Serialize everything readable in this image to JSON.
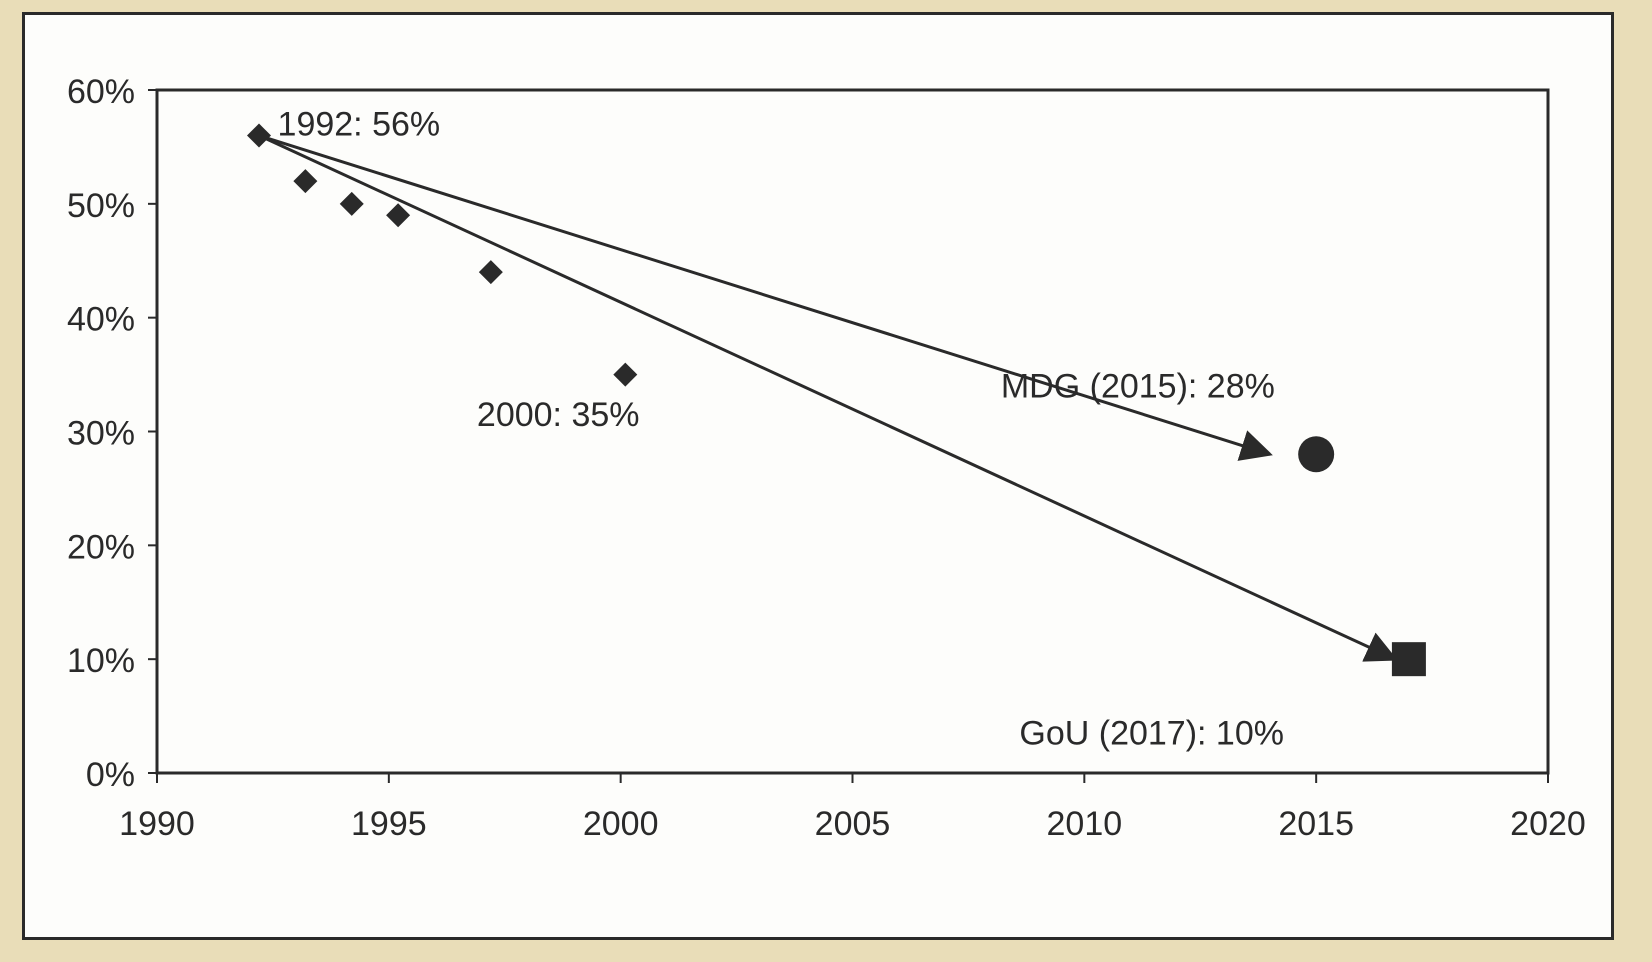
{
  "chart_data": {
    "type": "scatter",
    "title": "",
    "xlabel": "",
    "ylabel": "",
    "xlim": [
      1990,
      2020
    ],
    "ylim": [
      0,
      60
    ],
    "x_ticks": [
      "1990",
      "1995",
      "2000",
      "2005",
      "2010",
      "2015",
      "2020"
    ],
    "y_ticks": [
      "0%",
      "10%",
      "20%",
      "30%",
      "40%",
      "50%",
      "60%"
    ],
    "grid": false,
    "series": [
      {
        "marker": "diamond",
        "points": [
          {
            "x": 1992.2,
            "y": 56
          },
          {
            "x": 1993.2,
            "y": 52
          },
          {
            "x": 1994.2,
            "y": 50
          },
          {
            "x": 1995.2,
            "y": 49
          },
          {
            "x": 1997.2,
            "y": 44
          },
          {
            "x": 2000.1,
            "y": 35
          }
        ]
      },
      {
        "marker": "circle",
        "points": [
          {
            "x": 2015,
            "y": 28
          }
        ]
      },
      {
        "marker": "square",
        "points": [
          {
            "x": 2017,
            "y": 10
          }
        ]
      }
    ],
    "arrows": [
      {
        "from": {
          "x": 1992.2,
          "y": 56
        },
        "to": {
          "x": 2014,
          "y": 28
        }
      },
      {
        "from": {
          "x": 1992.2,
          "y": 56
        },
        "to": {
          "x": 2016.7,
          "y": 10
        }
      }
    ],
    "annotations": [
      {
        "text": "1992: 56%",
        "x": 1992.6,
        "y": 56
      },
      {
        "text": "2000: 35%",
        "x": 1996.9,
        "y": 30.5
      },
      {
        "text": "MDG  (2015): 28%",
        "x": 2008.2,
        "y": 33
      },
      {
        "text": "GoU (2017): 10%",
        "x": 2008.6,
        "y": 2.5
      }
    ]
  }
}
